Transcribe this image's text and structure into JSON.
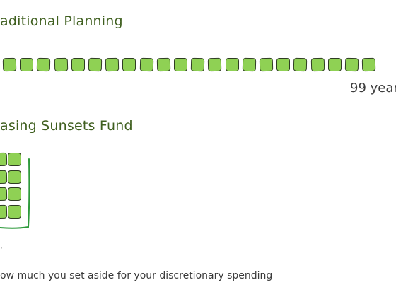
{
  "sections": {
    "traditional": {
      "title": "aditional Planning",
      "blocks": 22,
      "duration_label": "99 year"
    },
    "sunsets": {
      "title": "asing Sunsets Fund",
      "blocks": 8,
      "tick_label": ","
    }
  },
  "footer": {
    "note": "ow much you set aside for your discretionary spending"
  },
  "colors": {
    "block_fill": "#8fd154",
    "block_border": "#2f3d23",
    "heading_text": "#3f5f1f",
    "bracket": "#2e9a3c"
  }
}
